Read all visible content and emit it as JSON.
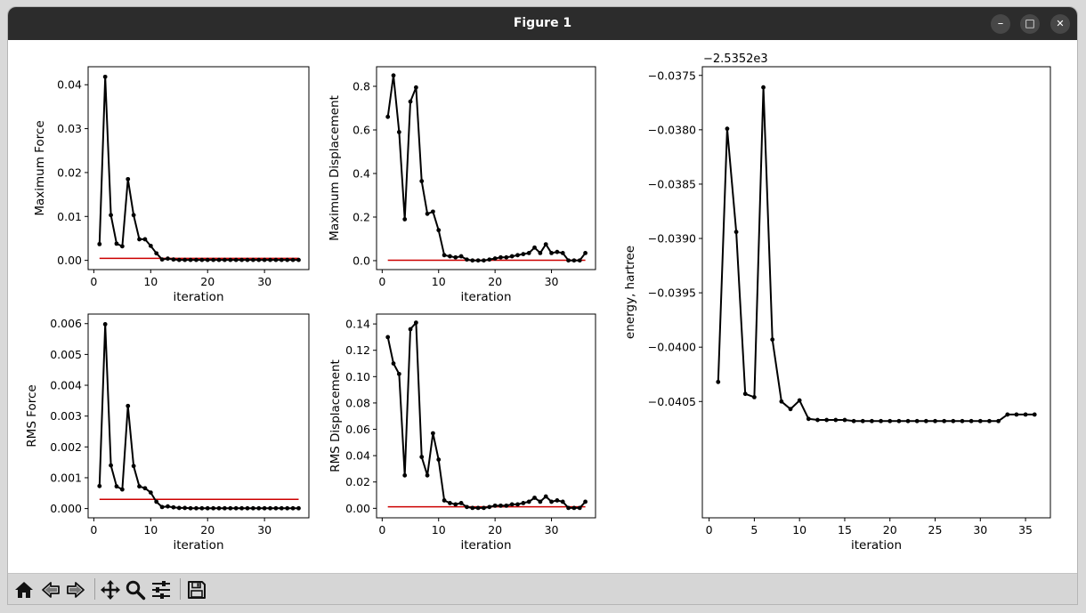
{
  "window": {
    "title": "Figure 1",
    "controls": {
      "minimize": "–",
      "maximize": "□",
      "close": "✕"
    }
  },
  "toolbar": {
    "buttons": [
      "home-icon",
      "back-icon",
      "forward-icon",
      "pan-icon",
      "zoom-icon",
      "configure-subplots-icon",
      "save-icon"
    ]
  },
  "colors": {
    "line": "#000000",
    "threshold": "#cc0000",
    "titlebar": "#2c2c2c",
    "toolbar": "#d6d6d6"
  },
  "chart_data": [
    {
      "type": "line",
      "ylabel": "Maximum Force",
      "xlabel": "iteration",
      "xlim": [
        -1,
        37.8
      ],
      "ylim": [
        -0.0021,
        0.0441
      ],
      "xticks": [
        0,
        10,
        20,
        30
      ],
      "xtick_labels": [
        "0",
        "10",
        "20",
        "30"
      ],
      "yticks": [
        0,
        0.01,
        0.02,
        0.03,
        0.04
      ],
      "ytick_labels": [
        "0.00",
        "0.01",
        "0.02",
        "0.03",
        "0.04"
      ],
      "x": [
        1,
        2,
        3,
        4,
        5,
        6,
        7,
        8,
        9,
        10,
        11,
        12,
        13,
        14,
        15,
        16,
        17,
        18,
        19,
        20,
        21,
        22,
        23,
        24,
        25,
        26,
        27,
        28,
        29,
        30,
        31,
        32,
        33,
        34,
        35,
        36
      ],
      "values": [
        0.0037,
        0.0418,
        0.0103,
        0.0038,
        0.0032,
        0.0185,
        0.0103,
        0.0048,
        0.0048,
        0.0033,
        0.0016,
        0.0002,
        0.0004,
        0.0002,
        0.0001,
        0.0001,
        0.0001,
        0.0001,
        0.0001,
        0.0001,
        0.0001,
        0.0001,
        0.0001,
        0.0001,
        0.0001,
        0.0001,
        0.0001,
        0.0001,
        0.0001,
        0.0001,
        0.0001,
        0.0001,
        0.0001,
        0.0001,
        0.0001,
        0.0001
      ],
      "threshold": {
        "x": [
          1,
          36
        ],
        "y": 0.00045
      }
    },
    {
      "type": "line",
      "ylabel": "Maximum Displacement",
      "xlabel": "iteration",
      "xlim": [
        -1,
        37.8
      ],
      "ylim": [
        -0.041,
        0.89
      ],
      "xticks": [
        0,
        10,
        20,
        30
      ],
      "xtick_labels": [
        "0",
        "10",
        "20",
        "30"
      ],
      "yticks": [
        0,
        0.2,
        0.4,
        0.6,
        0.8
      ],
      "ytick_labels": [
        "0.0",
        "0.2",
        "0.4",
        "0.6",
        "0.8"
      ],
      "x": [
        1,
        2,
        3,
        4,
        5,
        6,
        7,
        8,
        9,
        10,
        11,
        12,
        13,
        14,
        15,
        16,
        17,
        18,
        19,
        20,
        21,
        22,
        23,
        24,
        25,
        26,
        27,
        28,
        29,
        30,
        31,
        32,
        33,
        34,
        35,
        36
      ],
      "values": [
        0.66,
        0.85,
        0.59,
        0.19,
        0.73,
        0.795,
        0.365,
        0.215,
        0.225,
        0.14,
        0.025,
        0.02,
        0.015,
        0.02,
        0.005,
        0.001,
        0.001,
        0.001,
        0.005,
        0.01,
        0.015,
        0.015,
        0.02,
        0.025,
        0.03,
        0.035,
        0.06,
        0.035,
        0.075,
        0.035,
        0.04,
        0.035,
        0.001,
        0.001,
        0.001,
        0.035
      ],
      "threshold": {
        "x": [
          1,
          36
        ],
        "y": 0.0018
      }
    },
    {
      "type": "line",
      "ylabel": "RMS Force",
      "xlabel": "iteration",
      "xlim": [
        -1,
        37.8
      ],
      "ylim": [
        -0.0003,
        0.00631
      ],
      "xticks": [
        0,
        10,
        20,
        30
      ],
      "xtick_labels": [
        "0",
        "10",
        "20",
        "30"
      ],
      "yticks": [
        0,
        0.001,
        0.002,
        0.003,
        0.004,
        0.005,
        0.006
      ],
      "ytick_labels": [
        "0.000",
        "0.001",
        "0.002",
        "0.003",
        "0.004",
        "0.005",
        "0.006"
      ],
      "x": [
        1,
        2,
        3,
        4,
        5,
        6,
        7,
        8,
        9,
        10,
        11,
        12,
        13,
        14,
        15,
        16,
        17,
        18,
        19,
        20,
        21,
        22,
        23,
        24,
        25,
        26,
        27,
        28,
        29,
        30,
        31,
        32,
        33,
        34,
        35,
        36
      ],
      "values": [
        0.00073,
        0.00598,
        0.0014,
        0.00072,
        0.00062,
        0.00333,
        0.00138,
        0.00072,
        0.00066,
        0.00052,
        0.00022,
        5e-05,
        7e-05,
        4e-05,
        2e-05,
        2e-05,
        1e-05,
        1e-05,
        1e-05,
        1e-05,
        1e-05,
        1e-05,
        1e-05,
        1e-05,
        1e-05,
        1e-05,
        1e-05,
        1e-05,
        1e-05,
        1e-05,
        1e-05,
        1e-05,
        1e-05,
        1e-05,
        1e-05,
        1e-05
      ],
      "threshold": {
        "x": [
          1,
          36
        ],
        "y": 0.0003
      }
    },
    {
      "type": "line",
      "ylabel": "RMS Displacement",
      "xlabel": "iteration",
      "xlim": [
        -1,
        37.8
      ],
      "ylim": [
        -0.0072,
        0.1475
      ],
      "xticks": [
        0,
        10,
        20,
        30
      ],
      "xtick_labels": [
        "0",
        "10",
        "20",
        "30"
      ],
      "yticks": [
        0,
        0.02,
        0.04,
        0.06,
        0.08,
        0.1,
        0.12,
        0.14
      ],
      "ytick_labels": [
        "0.00",
        "0.02",
        "0.04",
        "0.06",
        "0.08",
        "0.10",
        "0.12",
        "0.14"
      ],
      "x": [
        1,
        2,
        3,
        4,
        5,
        6,
        7,
        8,
        9,
        10,
        11,
        12,
        13,
        14,
        15,
        16,
        17,
        18,
        19,
        20,
        21,
        22,
        23,
        24,
        25,
        26,
        27,
        28,
        29,
        30,
        31,
        32,
        33,
        34,
        35,
        36
      ],
      "values": [
        0.13,
        0.11,
        0.102,
        0.025,
        0.136,
        0.141,
        0.039,
        0.025,
        0.057,
        0.037,
        0.006,
        0.004,
        0.003,
        0.004,
        0.001,
        0.0003,
        0.0003,
        0.0003,
        0.001,
        0.002,
        0.002,
        0.002,
        0.003,
        0.003,
        0.004,
        0.005,
        0.008,
        0.005,
        0.009,
        0.005,
        0.006,
        0.005,
        0.0003,
        0.0003,
        0.0003,
        0.005
      ],
      "threshold": {
        "x": [
          1,
          36
        ],
        "y": 0.0012
      }
    },
    {
      "type": "line",
      "ylabel": "energy, hartree",
      "xlabel": "iteration",
      "offset_text": "−2.5352e3",
      "xlim": [
        -0.75,
        37.75
      ],
      "ylim": [
        -0.04157,
        -0.03742
      ],
      "xticks": [
        0,
        5,
        10,
        15,
        20,
        25,
        30,
        35
      ],
      "xtick_labels": [
        "0",
        "5",
        "10",
        "15",
        "20",
        "25",
        "30",
        "35"
      ],
      "yticks": [
        -0.0405,
        -0.04,
        -0.0395,
        -0.039,
        -0.0385,
        -0.038,
        -0.0375
      ],
      "ytick_labels": [
        "−0.0405",
        "−0.0400",
        "−0.0395",
        "−0.0390",
        "−0.0385",
        "−0.0380",
        "−0.0375"
      ],
      "x": [
        1,
        2,
        3,
        4,
        5,
        6,
        7,
        8,
        9,
        10,
        11,
        12,
        13,
        14,
        15,
        16,
        17,
        18,
        19,
        20,
        21,
        22,
        23,
        24,
        25,
        26,
        27,
        28,
        29,
        30,
        31,
        32,
        33,
        34,
        35,
        36
      ],
      "values": [
        -0.04032,
        -0.03799,
        -0.03894,
        -0.04043,
        -0.04046,
        -0.03761,
        -0.03993,
        -0.0405,
        -0.04057,
        -0.04049,
        -0.04066,
        -0.04067,
        -0.04067,
        -0.04067,
        -0.04067,
        -0.04068,
        -0.04068,
        -0.04068,
        -0.04068,
        -0.04068,
        -0.04068,
        -0.04068,
        -0.04068,
        -0.04068,
        -0.04068,
        -0.04068,
        -0.04068,
        -0.04068,
        -0.04068,
        -0.04068,
        -0.04068,
        -0.04068,
        -0.04062,
        -0.04062,
        -0.04062,
        -0.04062
      ]
    }
  ]
}
